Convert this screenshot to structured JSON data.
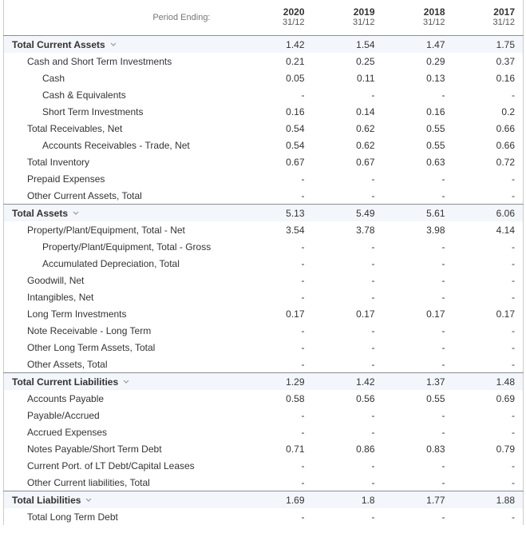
{
  "header": {
    "period_label": "Period Ending:",
    "columns": [
      {
        "year": "2020",
        "date": "31/12"
      },
      {
        "year": "2019",
        "date": "31/12"
      },
      {
        "year": "2018",
        "date": "31/12"
      },
      {
        "year": "2017",
        "date": "31/12"
      }
    ]
  },
  "sections": [
    {
      "label": "Total Current Assets",
      "values": [
        1.42,
        1.54,
        1.47,
        1.75
      ],
      "items": [
        {
          "label": "Cash and Short Term Investments",
          "values": [
            0.21,
            0.25,
            0.29,
            0.37
          ],
          "items": [
            {
              "label": "Cash",
              "values": [
                0.05,
                0.11,
                0.13,
                0.16
              ]
            },
            {
              "label": "Cash & Equivalents",
              "values": [
                "-",
                "-",
                "-",
                "-"
              ]
            },
            {
              "label": "Short Term Investments",
              "values": [
                0.16,
                0.14,
                0.16,
                0.2
              ]
            }
          ]
        },
        {
          "label": "Total Receivables, Net",
          "values": [
            0.54,
            0.62,
            0.55,
            0.66
          ],
          "items": [
            {
              "label": "Accounts Receivables - Trade, Net",
              "values": [
                0.54,
                0.62,
                0.55,
                0.66
              ]
            }
          ]
        },
        {
          "label": "Total Inventory",
          "values": [
            0.67,
            0.67,
            0.63,
            0.72
          ]
        },
        {
          "label": "Prepaid Expenses",
          "values": [
            "-",
            "-",
            "-",
            "-"
          ]
        },
        {
          "label": "Other Current Assets, Total",
          "values": [
            "-",
            "-",
            "-",
            "-"
          ]
        }
      ]
    },
    {
      "label": "Total Assets",
      "values": [
        5.13,
        5.49,
        5.61,
        6.06
      ],
      "items": [
        {
          "label": "Property/Plant/Equipment, Total - Net",
          "values": [
            3.54,
            3.78,
            3.98,
            4.14
          ],
          "items": [
            {
              "label": "Property/Plant/Equipment, Total - Gross",
              "values": [
                "-",
                "-",
                "-",
                "-"
              ]
            },
            {
              "label": "Accumulated Depreciation, Total",
              "values": [
                "-",
                "-",
                "-",
                "-"
              ]
            }
          ]
        },
        {
          "label": "Goodwill, Net",
          "values": [
            "-",
            "-",
            "-",
            "-"
          ]
        },
        {
          "label": "Intangibles, Net",
          "values": [
            "-",
            "-",
            "-",
            "-"
          ]
        },
        {
          "label": "Long Term Investments",
          "values": [
            0.17,
            0.17,
            0.17,
            0.17
          ]
        },
        {
          "label": "Note Receivable - Long Term",
          "values": [
            "-",
            "-",
            "-",
            "-"
          ]
        },
        {
          "label": "Other Long Term Assets, Total",
          "values": [
            "-",
            "-",
            "-",
            "-"
          ]
        },
        {
          "label": "Other Assets, Total",
          "values": [
            "-",
            "-",
            "-",
            "-"
          ]
        }
      ]
    },
    {
      "label": "Total Current Liabilities",
      "values": [
        1.29,
        1.42,
        1.37,
        1.48
      ],
      "items": [
        {
          "label": "Accounts Payable",
          "values": [
            0.58,
            0.56,
            0.55,
            0.69
          ]
        },
        {
          "label": "Payable/Accrued",
          "values": [
            "-",
            "-",
            "-",
            "-"
          ]
        },
        {
          "label": "Accrued Expenses",
          "values": [
            "-",
            "-",
            "-",
            "-"
          ]
        },
        {
          "label": "Notes Payable/Short Term Debt",
          "values": [
            0.71,
            0.86,
            0.83,
            0.79
          ]
        },
        {
          "label": "Current Port. of LT Debt/Capital Leases",
          "values": [
            "-",
            "-",
            "-",
            "-"
          ]
        },
        {
          "label": "Other Current liabilities, Total",
          "values": [
            "-",
            "-",
            "-",
            "-"
          ]
        }
      ]
    },
    {
      "label": "Total Liabilities",
      "values": [
        1.69,
        1.8,
        1.77,
        1.88
      ],
      "items": [
        {
          "label": "Total Long Term Debt",
          "values": [
            "-",
            "-",
            "-",
            "-"
          ]
        }
      ]
    }
  ]
}
